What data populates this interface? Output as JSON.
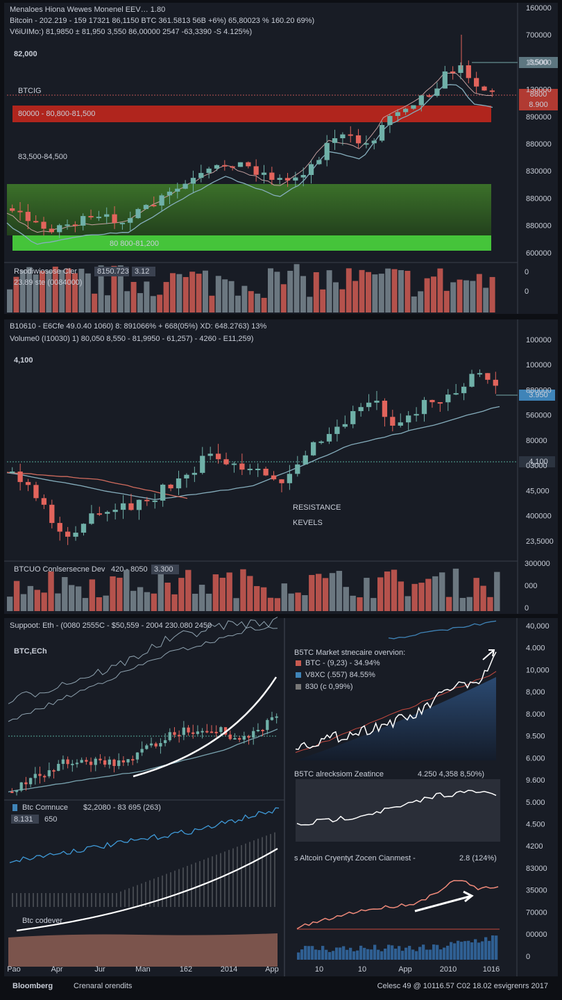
{
  "panels": [
    {
      "header": [
        "Menaloes Hiona Wewes Monenel   EEV… 1.80",
        "Bitcoin - 202.219 - 159 17321  86,1150  BTC 361.5813  56B +6%)  65,80023 %  160.20 69%)",
        "V6iUIMo:)  81,9850  ± 81,950  3,550  86,00000  2547  -63,3390  -S 4.125%)"
      ],
      "big": "82,000",
      "symbol": "BTCIG",
      "resistance": "80000  -  80,800-81,500",
      "mid_zone": "83,500-84,500",
      "support": "80 800-81,200",
      "price_tags": [
        "8,500",
        "8800",
        "8.900"
      ],
      "yaxis": [
        "160000",
        "700000",
        "135000",
        "130000",
        "890000",
        "880000",
        "830000",
        "880000",
        "880000",
        "600000"
      ],
      "volume_labels": [
        "Rsodiwiosose Cler",
        "8150.723",
        "3.12",
        "23.89  ste (0084000)"
      ],
      "volume_axis": [
        "0",
        "0"
      ]
    },
    {
      "header": [
        "B10610 - E6Cfe  49.0.40  1060)  8: 891066% + 668(05%)  XD: 648.2763)   13%",
        "Volume0  (I10030)  1)  80,050  8,550  - 81,9950  - 61,257)  - 4260  - E11,259)"
      ],
      "big": "4,100",
      "note": [
        "RESISTANCE",
        "KEVELS"
      ],
      "price_tags": [
        "3.950",
        "4,100"
      ],
      "yaxis": [
        "100000",
        "100000",
        "880000",
        "560000",
        "80000",
        "03000",
        "45,000",
        "400000",
        "23,5000"
      ],
      "volume_labels": [
        "BTCUO Conlsersecne Dev",
        "420 - 8050",
        "3.300"
      ],
      "volume_axis": [
        "300000",
        "000",
        "0"
      ]
    },
    {
      "header": "Suppoot: Eth - (0080  2555C - $50,559 - 2004  230.080   2450",
      "big": "BTC,ECh",
      "compare": [
        "Btc Comnuce",
        "$2,2080 - 83 695  (263)",
        "8.131",
        "650"
      ],
      "lower": "Btc codever",
      "market_title": "B5TC Market stnecaire overvion:",
      "market_legend": [
        "BTC - (9,23) - 34.94%",
        "V8XC  (.557)  84.55%",
        "830 (c 0,99%)"
      ],
      "zone_title": "B5TC alrecksiom Zeatince",
      "zone_values": "4.250  4,358 8,50%)",
      "alt_title": "s Altcoin Cryentyt Zocen Cianmest -",
      "alt_values": "2.8  (124%)",
      "yaxis": [
        "40,000",
        "4.000",
        "10,000",
        "8,000",
        "8.000",
        "9.500",
        "6.000",
        "9.600",
        "5.000",
        "4.500",
        "4200",
        "83000",
        "35000",
        "70000",
        "00000",
        "0"
      ],
      "xaxis_left": [
        "Pao",
        "Apr",
        "Jur",
        "Man",
        "162",
        "2014",
        "App"
      ],
      "xaxis_right": [
        "10",
        "10",
        "App",
        "2010",
        "1016"
      ]
    }
  ],
  "footer": {
    "brand": "Bloomberg",
    "sub": "Crenaral orendits",
    "credit": "Celesc 49 @ 10116.57  C02  18.02  esvigrenrs 2017"
  }
}
